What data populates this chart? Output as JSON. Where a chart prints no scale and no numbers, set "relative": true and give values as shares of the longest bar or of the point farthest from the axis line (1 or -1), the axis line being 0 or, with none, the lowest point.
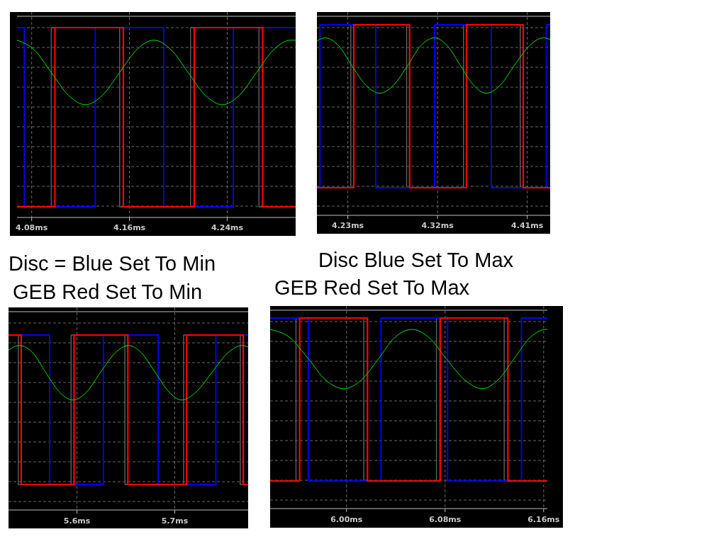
{
  "chart_data": [
    {
      "type": "line",
      "relative": true,
      "grid": true,
      "xlim": [
        4.068,
        4.296
      ],
      "xticks": [
        {
          "value": 4.08,
          "label": "4.08ms"
        },
        {
          "value": 4.16,
          "label": "4.16ms"
        },
        {
          "value": 4.24,
          "label": "4.24ms"
        }
      ],
      "series": [
        {
          "color": "#606060",
          "x": [
            4.068,
            4.096,
            4.096,
            4.152,
            4.152,
            4.21,
            4.21,
            4.266,
            4.266,
            4.296
          ],
          "values": [
            0,
            0,
            1,
            1,
            0,
            0,
            1,
            1,
            0,
            0
          ]
        },
        {
          "color": "#0000ff",
          "x": [
            4.068,
            4.074,
            4.074,
            4.132,
            4.132,
            4.188,
            4.188,
            4.245,
            4.245,
            4.296
          ],
          "values": [
            1,
            1,
            0,
            0,
            1,
            1,
            0,
            0,
            1,
            1
          ]
        },
        {
          "color": "#ff0000",
          "x": [
            4.068,
            4.099,
            4.099,
            4.155,
            4.155,
            4.213,
            4.213,
            4.269,
            4.269,
            4.296
          ],
          "values": [
            0,
            0,
            1,
            1,
            0,
            0,
            1,
            1,
            0,
            0
          ]
        },
        {
          "color": "#00e000",
          "x": [
            4.068,
            4.082,
            4.096,
            4.11,
            4.124,
            4.138,
            4.152,
            4.166,
            4.18,
            4.194,
            4.208,
            4.222,
            4.236,
            4.25,
            4.264,
            4.278,
            4.292,
            4.296
          ],
          "values": [
            0.93,
            0.877,
            0.75,
            0.623,
            0.57,
            0.623,
            0.75,
            0.877,
            0.93,
            0.877,
            0.75,
            0.623,
            0.57,
            0.623,
            0.75,
            0.877,
            0.93,
            0.93
          ]
        }
      ]
    },
    {
      "type": "line",
      "relative": true,
      "grid": true,
      "xlim": [
        4.199,
        4.433
      ],
      "xticks": [
        {
          "value": 4.23,
          "label": "4.23ms"
        },
        {
          "value": 4.32,
          "label": "4.32ms"
        },
        {
          "value": 4.41,
          "label": "4.41ms"
        }
      ],
      "series": [
        {
          "color": "#606060",
          "x": [
            4.199,
            4.233,
            4.233,
            4.289,
            4.289,
            4.346,
            4.346,
            4.403,
            4.403,
            4.433
          ],
          "values": [
            0,
            0,
            1,
            1,
            0,
            0,
            1,
            1,
            0,
            0
          ]
        },
        {
          "color": "#0000ff",
          "x": [
            4.199,
            4.202,
            4.202,
            4.258,
            4.258,
            4.317,
            4.317,
            4.374,
            4.374,
            4.429,
            4.429,
            4.433
          ],
          "values": [
            0,
            0,
            1,
            1,
            0,
            0,
            1,
            1,
            0,
            0,
            1,
            1
          ]
        },
        {
          "color": "#ff0000",
          "x": [
            4.199,
            4.236,
            4.236,
            4.292,
            4.292,
            4.349,
            4.349,
            4.406,
            4.406,
            4.433
          ],
          "values": [
            0,
            0,
            1,
            1,
            0,
            0,
            1,
            1,
            0,
            0
          ]
        },
        {
          "color": "#00e000",
          "x": [
            4.199,
            4.207,
            4.221,
            4.234,
            4.248,
            4.262,
            4.276,
            4.29,
            4.303,
            4.317,
            4.33,
            4.343,
            4.356,
            4.369,
            4.383,
            4.397,
            4.412,
            4.426,
            4.433
          ],
          "values": [
            0.9,
            0.92,
            0.87,
            0.75,
            0.63,
            0.58,
            0.63,
            0.75,
            0.87,
            0.92,
            0.87,
            0.75,
            0.63,
            0.58,
            0.63,
            0.75,
            0.87,
            0.92,
            0.91
          ]
        }
      ]
    },
    {
      "type": "line",
      "relative": true,
      "grid": true,
      "title": "Disc = Blue Set To Min",
      "subtitle": "GEB Red Set To Min",
      "xlim": [
        5.53,
        5.775
      ],
      "xticks": [
        {
          "value": 5.6,
          "label": "5.6ms"
        },
        {
          "value": 5.7,
          "label": "5.7ms"
        }
      ],
      "series": [
        {
          "color": "#606060",
          "x": [
            5.53,
            5.54,
            5.54,
            5.594,
            5.594,
            5.649,
            5.649,
            5.709,
            5.709,
            5.767,
            5.767,
            5.775
          ],
          "values": [
            1,
            1,
            0,
            0,
            1,
            1,
            0,
            0,
            1,
            1,
            0,
            0
          ]
        },
        {
          "color": "#0000ff",
          "x": [
            5.53,
            5.572,
            5.572,
            5.627,
            5.627,
            5.683,
            5.683,
            5.742,
            5.742,
            5.775
          ],
          "values": [
            1,
            1,
            0,
            0,
            1,
            1,
            0,
            0,
            1,
            1
          ]
        },
        {
          "color": "#ff0000",
          "x": [
            5.53,
            5.543,
            5.543,
            5.597,
            5.597,
            5.652,
            5.652,
            5.712,
            5.712,
            5.77,
            5.77,
            5.775
          ],
          "values": [
            1,
            1,
            0,
            0,
            1,
            1,
            0,
            0,
            1,
            1,
            0,
            0
          ]
        },
        {
          "color": "#00e000",
          "x": [
            5.53,
            5.541,
            5.555,
            5.568,
            5.582,
            5.596,
            5.61,
            5.624,
            5.639,
            5.653,
            5.666,
            5.68,
            5.694,
            5.707,
            5.722,
            5.738,
            5.754,
            5.769,
            5.775
          ],
          "values": [
            0.9,
            0.93,
            0.88,
            0.75,
            0.62,
            0.565,
            0.62,
            0.75,
            0.88,
            0.93,
            0.88,
            0.75,
            0.62,
            0.565,
            0.62,
            0.75,
            0.88,
            0.93,
            0.92
          ]
        }
      ]
    },
    {
      "type": "line",
      "relative": true,
      "grid": true,
      "title": "Disc Blue Set To Max",
      "subtitle": "GEB Red Set To Max",
      "xlim": [
        5.938,
        6.163
      ],
      "xticks": [
        {
          "value": 6.0,
          "label": "6.00ms"
        },
        {
          "value": 6.08,
          "label": "6.08ms"
        },
        {
          "value": 6.16,
          "label": "6.16ms"
        }
      ],
      "series": [
        {
          "color": "#606060",
          "x": [
            5.938,
            5.959,
            5.959,
            6.014,
            6.014,
            6.073,
            6.073,
            6.128,
            6.128,
            6.163
          ],
          "values": [
            0,
            0,
            1,
            1,
            0,
            0,
            1,
            1,
            0,
            0
          ]
        },
        {
          "color": "#0000ff",
          "x": [
            5.938,
            5.969,
            5.969,
            6.028,
            6.028,
            6.082,
            6.082,
            6.142,
            6.142,
            6.163
          ],
          "values": [
            1,
            1,
            0,
            0,
            1,
            1,
            0,
            0,
            1,
            1
          ]
        },
        {
          "color": "#ff0000",
          "x": [
            5.938,
            5.962,
            5.962,
            6.017,
            6.017,
            6.076,
            6.076,
            6.131,
            6.131,
            6.163
          ],
          "values": [
            0,
            0,
            1,
            1,
            0,
            0,
            1,
            1,
            0,
            0
          ]
        },
        {
          "color": "#00e000",
          "x": [
            5.938,
            5.954,
            5.969,
            5.983,
            5.998,
            6.012,
            6.026,
            6.039,
            6.053,
            6.067,
            6.081,
            6.096,
            6.11,
            6.123,
            6.136,
            6.149,
            6.162,
            6.163
          ],
          "values": [
            0.93,
            0.88,
            0.75,
            0.62,
            0.566,
            0.62,
            0.75,
            0.88,
            0.93,
            0.88,
            0.75,
            0.62,
            0.566,
            0.62,
            0.75,
            0.88,
            0.93,
            0.93
          ]
        }
      ]
    }
  ]
}
